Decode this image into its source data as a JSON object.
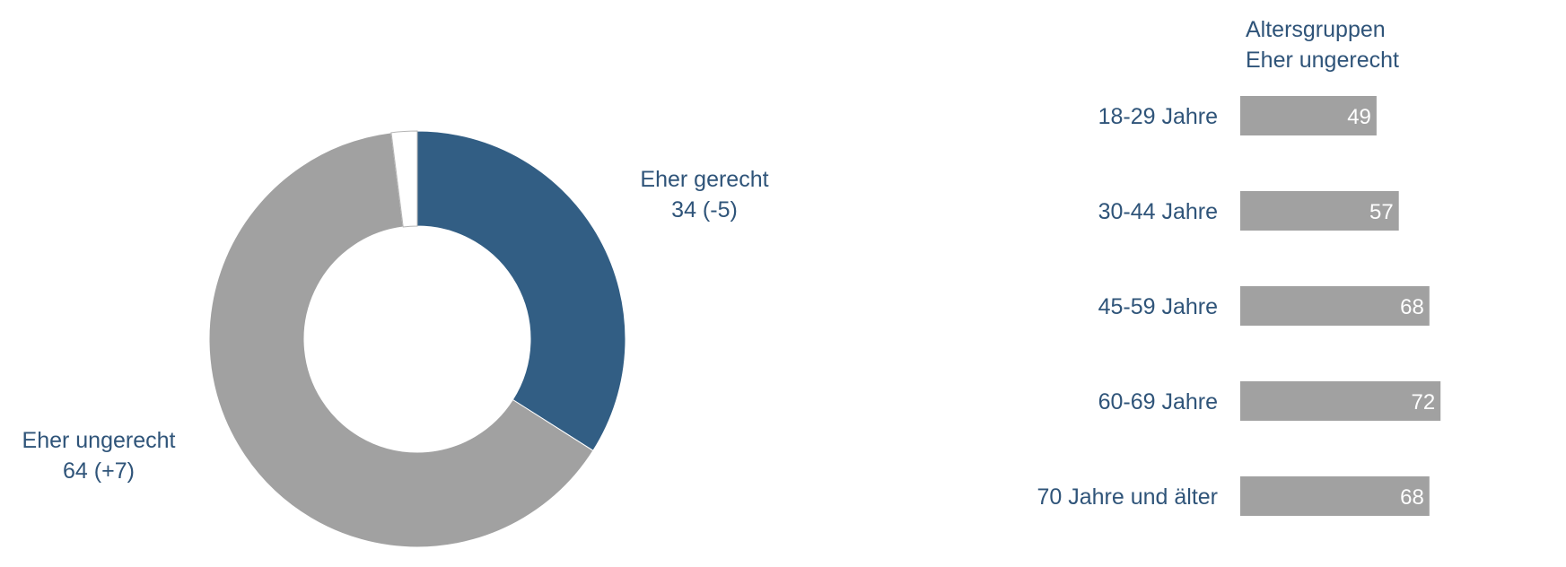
{
  "colors": {
    "accent": "#325e84",
    "bar": "#a1a1a1",
    "residual": "#ffffff",
    "text": "#2f5479",
    "bar_label": "#ffffff"
  },
  "chart_data": [
    {
      "type": "pie",
      "donut": true,
      "slices": [
        {
          "label": "Eher gerecht",
          "value": 34,
          "change": "(-5)",
          "color": "#325e84",
          "label_text": "34 (-5)"
        },
        {
          "label": "Eher ungerecht",
          "value": 64,
          "change": "(+7)",
          "color": "#a1a1a1",
          "label_text": "64 (+7)"
        },
        {
          "label": "",
          "value": 2,
          "color": "#ffffff"
        }
      ]
    },
    {
      "type": "bar",
      "orientation": "horizontal",
      "title": "Altersgruppen",
      "subtitle": "Eher ungerecht",
      "categories": [
        "18-29 Jahre",
        "30-44 Jahre",
        "45-59 Jahre",
        "60-69 Jahre",
        "70 Jahre und älter"
      ],
      "values": [
        49,
        57,
        68,
        72,
        68
      ],
      "value_labels": [
        "49",
        "57",
        "68",
        "72",
        "68"
      ],
      "color": "#a1a1a1"
    }
  ]
}
